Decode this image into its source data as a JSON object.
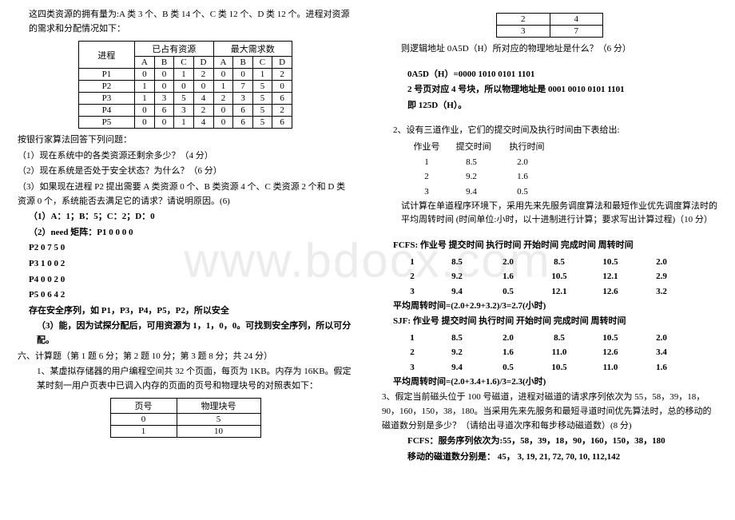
{
  "left": {
    "intro1": "这四类资源的拥有量为:A 类 3 个、B 类 14 个、C 类 12 个、D 类 12 个。进程对资源的需求和分配情况如下：",
    "table_headers": {
      "proc": "进程",
      "alloc": "已占有资源",
      "max": "最大需求数"
    },
    "cols": [
      "A",
      "B",
      "C",
      "D"
    ],
    "rows": [
      {
        "p": "P1",
        "alloc": [
          "0",
          "0",
          "1",
          "2"
        ],
        "max": [
          "0",
          "0",
          "1",
          "2"
        ]
      },
      {
        "p": "P2",
        "alloc": [
          "1",
          "0",
          "0",
          "0"
        ],
        "max": [
          "1",
          "7",
          "5",
          "0"
        ]
      },
      {
        "p": "P3",
        "alloc": [
          "1",
          "3",
          "5",
          "4"
        ],
        "max": [
          "2",
          "3",
          "5",
          "6"
        ]
      },
      {
        "p": "P4",
        "alloc": [
          "0",
          "6",
          "3",
          "2"
        ],
        "max": [
          "0",
          "6",
          "5",
          "2"
        ]
      },
      {
        "p": "P5",
        "alloc": [
          "0",
          "0",
          "1",
          "4"
        ],
        "max": [
          "0",
          "6",
          "5",
          "6"
        ]
      }
    ],
    "q_head": "按银行家算法回答下列问题：",
    "q1": "（1）现在系统中的各类资源还剩余多少？（4 分）",
    "q2": "（2）现在系统是否处于安全状态？为什么？（6 分）",
    "q3": "（3）如果现在进程 P2 提出需要 A 类资源 0 个、B 类资源 4 个、C 类资源 2 个和 D 类资源 0 个，系统能否去满足它的请求？请说明原因。(6)",
    "a1": "（1）A：1；B：5；C：2；D：0",
    "a2_head": "（2）need 矩阵：P1    0    0    0    0",
    "a2_p2": "P2    0    7    5    0",
    "a2_p3": "P3    1    0    0    2",
    "a2_p4": "P4    0    0    2    0",
    "a2_p5": "P5    0    6    4    2",
    "a2_safe": "存在安全序列，如 P1，P3，P4，P5，P2，所以安全",
    "a3": "（3）能，因为试探分配后，可用资源为 1，1，0，0。可找到安全序列，所以可分配。",
    "s6_head": "六、计算题（第 1 题 6 分；第 2 题 10 分；第 3 题 8 分；共 24 分）",
    "s6_q1": "1、某虚拟存储器的用户编程空间共 32 个页面，每页为 1KB。内存为 16KB。假定某时刻一用户页表中已调入内存的页面的页号和物理块号的对照表如下：",
    "page_table": {
      "h1": "页号",
      "h2": "物理块号",
      "rows": [
        [
          "0",
          "5"
        ],
        [
          "1",
          "10"
        ]
      ]
    }
  },
  "right": {
    "page_table_more": [
      [
        "2",
        "4"
      ],
      [
        "3",
        "7"
      ]
    ],
    "q_logical": "则逻辑地址 0A5D（H）所对应的物理地址是什么？（6 分）",
    "ans_line1": "0A5D（H）=0000 1010 0101 1101",
    "ans_line2": "2 号页对应 4 号块，所以物理地址是 0001 0010 0101 1101",
    "ans_line3": "即 125D（H）。",
    "q2_head": "2、设有三道作业，它们的提交时间及执行时间由下表给出:",
    "job_h": {
      "num": "作业号",
      "submit": "提交时间",
      "exec": "执行时间"
    },
    "jobs": [
      {
        "n": "1",
        "s": "8.5",
        "e": "2.0"
      },
      {
        "n": "2",
        "s": "9.2",
        "e": "1.6"
      },
      {
        "n": "3",
        "s": "9.4",
        "e": "0.5"
      }
    ],
    "q2_desc": "试计算在单道程序环境下，采用先来先服务调度算法和最短作业优先调度算法时的平均周转时间 (时间单位:小时，以十进制进行计算；要求写出计算过程)（10 分）",
    "fcfs_h": "FCFS: 作业号  提交时间  执行时间  开始时间  完成时间  周转时间",
    "fcfs_rows": [
      [
        "1",
        "8.5",
        "2.0",
        "8.5",
        "10.5",
        "2.0"
      ],
      [
        "2",
        "9.2",
        "1.6",
        "10.5",
        "12.1",
        "2.9"
      ],
      [
        "3",
        "9.4",
        "0.5",
        "12.1",
        "12.6",
        "3.2"
      ]
    ],
    "fcfs_avg": "平均周转时间=(2.0+2.9+3.2)/3=2.7(小时)",
    "sjf_h": "SJF: 作业号  提交时间  执行时间  开始时间  完成时间  周转时间",
    "sjf_rows": [
      [
        "1",
        "8.5",
        "2.0",
        "8.5",
        "10.5",
        "2.0"
      ],
      [
        "2",
        "9.2",
        "1.6",
        "11.0",
        "12.6",
        "3.4"
      ],
      [
        "3",
        "9.4",
        "0.5",
        "10.5",
        "11.0",
        "1.6"
      ]
    ],
    "sjf_avg": "平均周转时间=(2.0+3.4+1.6)/3=2.3(小时)",
    "q3": "3、假定当前磁头位于 100 号磁道，进程对磁道的请求序列依次为 55，58，39，18，90，160，150，38，180。当采用先来先服务和最短寻道时间优先算法时，总的移动的磁道数分别是多少？（请给出寻道次序和每步移动磁道数）(8 分)",
    "q3_a1": "FCFS：服务序列依次为:55，58，39，18，90，160，150，38，180",
    "q3_a2": "移动的磁道数分别是：  45， 3, 19, 21, 72,   70,   10, 112,142"
  }
}
